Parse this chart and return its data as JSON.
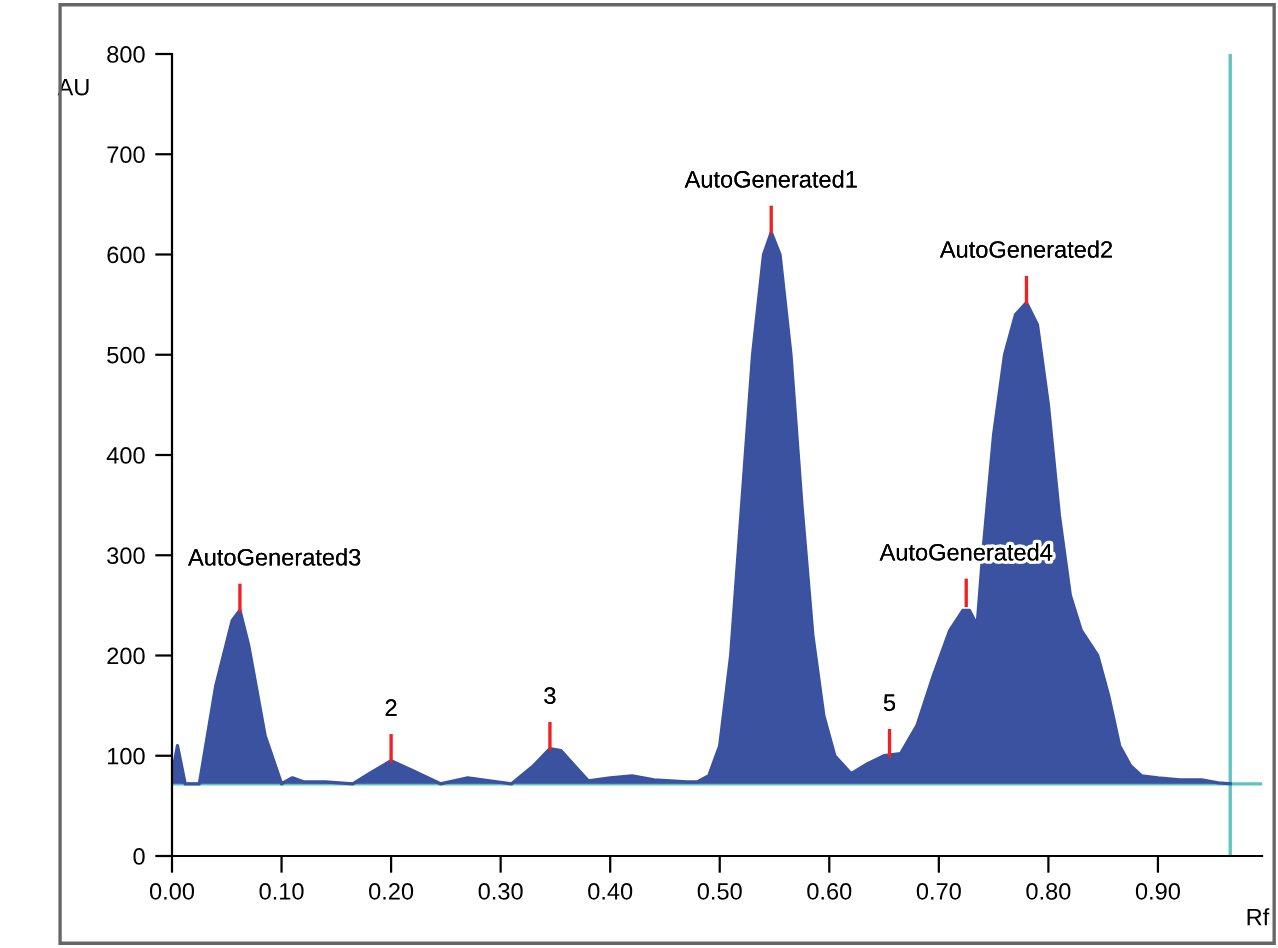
{
  "chart_data": {
    "type": "area",
    "xlabel": "Rf",
    "ylabel": "AU",
    "xlim": [
      0,
      0.995
    ],
    "ylim": [
      0,
      800
    ],
    "xticks": [
      {
        "value": 0,
        "label": "0.00"
      },
      {
        "value": 0.1,
        "label": "0.10"
      },
      {
        "value": 0.2,
        "label": "0.20"
      },
      {
        "value": 0.3,
        "label": "0.30"
      },
      {
        "value": 0.4,
        "label": "0.40"
      },
      {
        "value": 0.5,
        "label": "0.50"
      },
      {
        "value": 0.6,
        "label": "0.60"
      },
      {
        "value": 0.7,
        "label": "0.70"
      },
      {
        "value": 0.8,
        "label": "0.80"
      },
      {
        "value": 0.9,
        "label": "0.90"
      }
    ],
    "yticks": [
      0,
      100,
      200,
      300,
      400,
      500,
      600,
      700,
      800
    ],
    "grid": false,
    "series": [
      {
        "color": "#3a52a0",
        "x": [
          0.0,
          0.005,
          0.012,
          0.025,
          0.04,
          0.055,
          0.062,
          0.07,
          0.085,
          0.1,
          0.11,
          0.12,
          0.14,
          0.165,
          0.18,
          0.2,
          0.22,
          0.245,
          0.27,
          0.29,
          0.31,
          0.33,
          0.345,
          0.355,
          0.38,
          0.4,
          0.42,
          0.44,
          0.47,
          0.48,
          0.49,
          0.5,
          0.51,
          0.52,
          0.53,
          0.54,
          0.547,
          0.555,
          0.565,
          0.575,
          0.585,
          0.595,
          0.605,
          0.62,
          0.635,
          0.65,
          0.665,
          0.68,
          0.695,
          0.71,
          0.722,
          0.728,
          0.735,
          0.74,
          0.75,
          0.76,
          0.77,
          0.78,
          0.79,
          0.8,
          0.81,
          0.82,
          0.83,
          0.845,
          0.855,
          0.865,
          0.875,
          0.885,
          0.9,
          0.92,
          0.94,
          0.955,
          0.966
        ],
        "values": [
          80,
          110,
          72,
          72,
          170,
          235,
          245,
          210,
          120,
          72,
          78,
          74,
          74,
          72,
          82,
          95,
          85,
          72,
          78,
          75,
          72,
          90,
          107,
          105,
          75,
          78,
          80,
          76,
          74,
          74,
          80,
          110,
          200,
          350,
          500,
          600,
          622,
          600,
          500,
          350,
          220,
          140,
          100,
          82,
          92,
          100,
          102,
          130,
          180,
          225,
          245,
          245,
          230,
          300,
          420,
          500,
          540,
          552,
          530,
          450,
          340,
          260,
          225,
          200,
          160,
          110,
          90,
          80,
          78,
          76,
          76,
          73,
          72
        ]
      }
    ],
    "ref_lines": [
      {
        "axis": "y",
        "value": 72,
        "color": "#5fc4c0"
      },
      {
        "axis": "x",
        "value": 0.966,
        "color": "#5fc4c0"
      }
    ],
    "annotations": [
      {
        "text": "AutoGenerated3",
        "x": 0.062,
        "y": 245
      },
      {
        "text": "2",
        "x": 0.2,
        "y": 95
      },
      {
        "text": "3",
        "x": 0.345,
        "y": 107
      },
      {
        "text": "AutoGenerated1",
        "x": 0.547,
        "y": 622
      },
      {
        "text": "5",
        "x": 0.655,
        "y": 100
      },
      {
        "text": "AutoGenerated4",
        "x": 0.725,
        "y": 250
      },
      {
        "text": "AutoGenerated2",
        "x": 0.78,
        "y": 552
      }
    ]
  }
}
